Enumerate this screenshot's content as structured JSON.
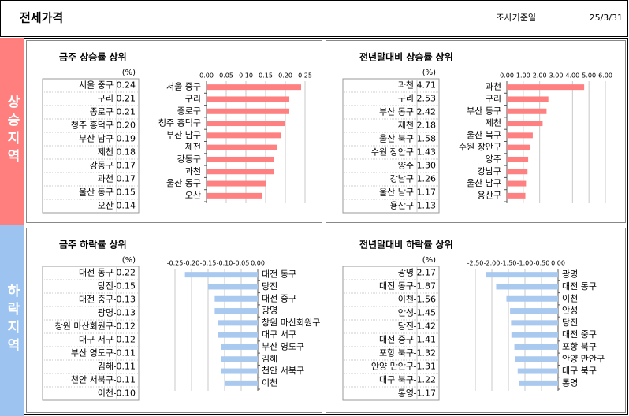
{
  "header": {
    "title": "전세가격",
    "date_label": "조사기준일",
    "date": "25/3/31"
  },
  "sections": [
    {
      "label": "상승지역",
      "color": "#ff7f7f"
    },
    {
      "label": "하락지역",
      "color": "#9dc3f0"
    }
  ],
  "chart_data": [
    {
      "type": "bar",
      "orientation": "horizontal",
      "title": "금주 상승률 상위",
      "unit": "(%)",
      "color": "#ff8080",
      "grid": true,
      "categories": [
        "서울 중구",
        "구리",
        "종로구",
        "청주 흥덕구",
        "부산 남구",
        "제천",
        "강동구",
        "과천",
        "울산 동구",
        "오산"
      ],
      "values": [
        0.24,
        0.21,
        0.21,
        0.2,
        0.19,
        0.18,
        0.17,
        0.17,
        0.15,
        0.14
      ],
      "value_labels": [
        "0.24",
        "0.21",
        "0.21",
        "0.20",
        "0.19",
        "0.18",
        "0.17",
        "0.17",
        "0.15",
        "0.14"
      ],
      "xlim": [
        0,
        0.25
      ],
      "xticks": [
        {
          "value": 0,
          "label": "0.00"
        },
        0.05,
        {
          "value": 0.1,
          "label": "0.10"
        },
        0.15,
        {
          "value": 0.2,
          "label": "0.20"
        },
        0.25
      ]
    },
    {
      "type": "bar",
      "orientation": "horizontal",
      "title": "전년말대비 상승률 상위",
      "unit": "(%)",
      "color": "#ff8080",
      "grid": true,
      "categories": [
        "과천",
        "구리",
        "부산 동구",
        "제천",
        "울산 북구",
        "수원 장안구",
        "양주",
        "강남구",
        "울산 남구",
        "용산구"
      ],
      "values": [
        4.71,
        2.53,
        2.42,
        2.18,
        1.58,
        1.43,
        1.3,
        1.26,
        1.17,
        1.13
      ],
      "value_labels": [
        "4.71",
        "2.53",
        "2.42",
        "2.18",
        "1.58",
        "1.43",
        "1.30",
        "1.26",
        "1.17",
        "1.13"
      ],
      "xlim": [
        0,
        6
      ],
      "xticks": [
        {
          "value": 0,
          "label": "0.00"
        },
        {
          "value": 1,
          "label": "1.00"
        },
        {
          "value": 2,
          "label": "2.00"
        },
        {
          "value": 3,
          "label": "3.00"
        },
        {
          "value": 4,
          "label": "4.00"
        },
        {
          "value": 5,
          "label": "5.00"
        },
        {
          "value": 6,
          "label": "6.00"
        }
      ]
    },
    {
      "type": "bar",
      "orientation": "horizontal",
      "title": "금주 하락률 상위",
      "unit": "(%)",
      "color": "#a9c9ef",
      "grid": true,
      "categories": [
        "대전 동구",
        "당진",
        "대전 중구",
        "광명",
        "창원 마산회원구",
        "대구 서구",
        "부산 영도구",
        "김해",
        "천안 서북구",
        "이천"
      ],
      "values": [
        -0.22,
        -0.15,
        -0.13,
        -0.13,
        -0.12,
        -0.12,
        -0.11,
        -0.11,
        -0.11,
        -0.1
      ],
      "value_labels": [
        "-0.22",
        "-0.15",
        "-0.13",
        "-0.13",
        "-0.12",
        "-0.12",
        "-0.11",
        "-0.11",
        "-0.11",
        "-0.10"
      ],
      "xlim": [
        -0.25,
        0
      ],
      "xticks": [
        -0.25,
        {
          "value": -0.2,
          "label": "-0.20"
        },
        -0.15,
        {
          "value": -0.1,
          "label": "-0.10"
        },
        {
          "value": -0.05,
          "label": "-0.05"
        },
        {
          "value": 0,
          "label": "0.00"
        }
      ]
    },
    {
      "type": "bar",
      "orientation": "horizontal",
      "title": "전년말대비 하락률 상위",
      "unit": "(%)",
      "color": "#a9c9ef",
      "grid": true,
      "categories": [
        "광명",
        "대전 동구",
        "이천",
        "안성",
        "당진",
        "대전 중구",
        "포항 북구",
        "안양 만안구",
        "대구 북구",
        "통영"
      ],
      "values": [
        -2.17,
        -1.87,
        -1.56,
        -1.45,
        -1.42,
        -1.41,
        -1.32,
        -1.31,
        -1.22,
        -1.17
      ],
      "value_labels": [
        "-2.17",
        "-1.87",
        "-1.56",
        "-1.45",
        "-1.42",
        "-1.41",
        "-1.32",
        "-1.31",
        "-1.22",
        "-1.17"
      ],
      "xlim": [
        -2.5,
        0
      ],
      "xticks": [
        {
          "value": -2.5,
          "label": "-2.50"
        },
        {
          "value": -2,
          "label": "-2.00"
        },
        {
          "value": -1.5,
          "label": "-1.50"
        },
        {
          "value": -1,
          "label": "-1.00"
        },
        {
          "value": -0.5,
          "label": "-0.50"
        },
        {
          "value": 0,
          "label": "0.00"
        }
      ]
    }
  ]
}
